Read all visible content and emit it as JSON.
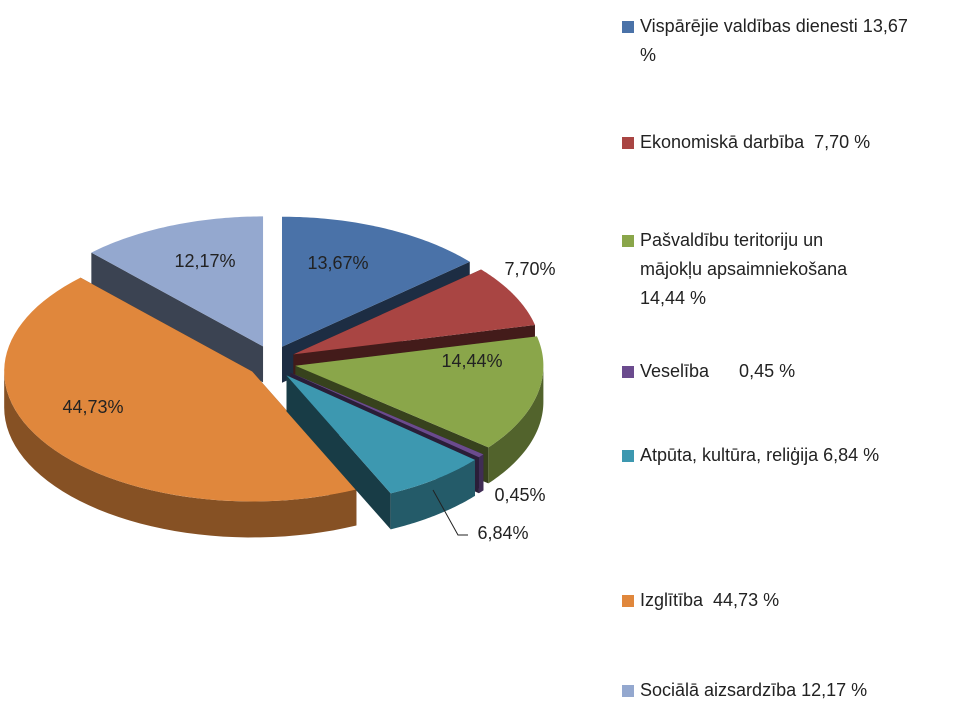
{
  "chart_data": {
    "type": "pie",
    "categories": [
      "Vispārējie valdības dienesti 13,67 %",
      "Ekonomiskā darbība  7,70 %",
      "Pašvaldību teritoriju un mājokļu apsaimniekošana 14,44 %",
      "Veselība      0,45 %",
      "Atpūta, kultūra, reliģija 6,84 %",
      "Izglītība  44,73 %",
      "Sociālā aizsardzība 12,17 %"
    ],
    "values": [
      13.67,
      7.7,
      14.44,
      0.45,
      6.84,
      44.73,
      12.17
    ],
    "value_labels": [
      "13,67%",
      "7,70%",
      "14,44%",
      "0,45%",
      "6,84%",
      "44,73%",
      "12,17%"
    ],
    "colors": [
      "#4a72a8",
      "#a94543",
      "#8aa64a",
      "#6b4b8e",
      "#3d98b0",
      "#e0873c",
      "#94a8cf"
    ],
    "legend": "right"
  }
}
